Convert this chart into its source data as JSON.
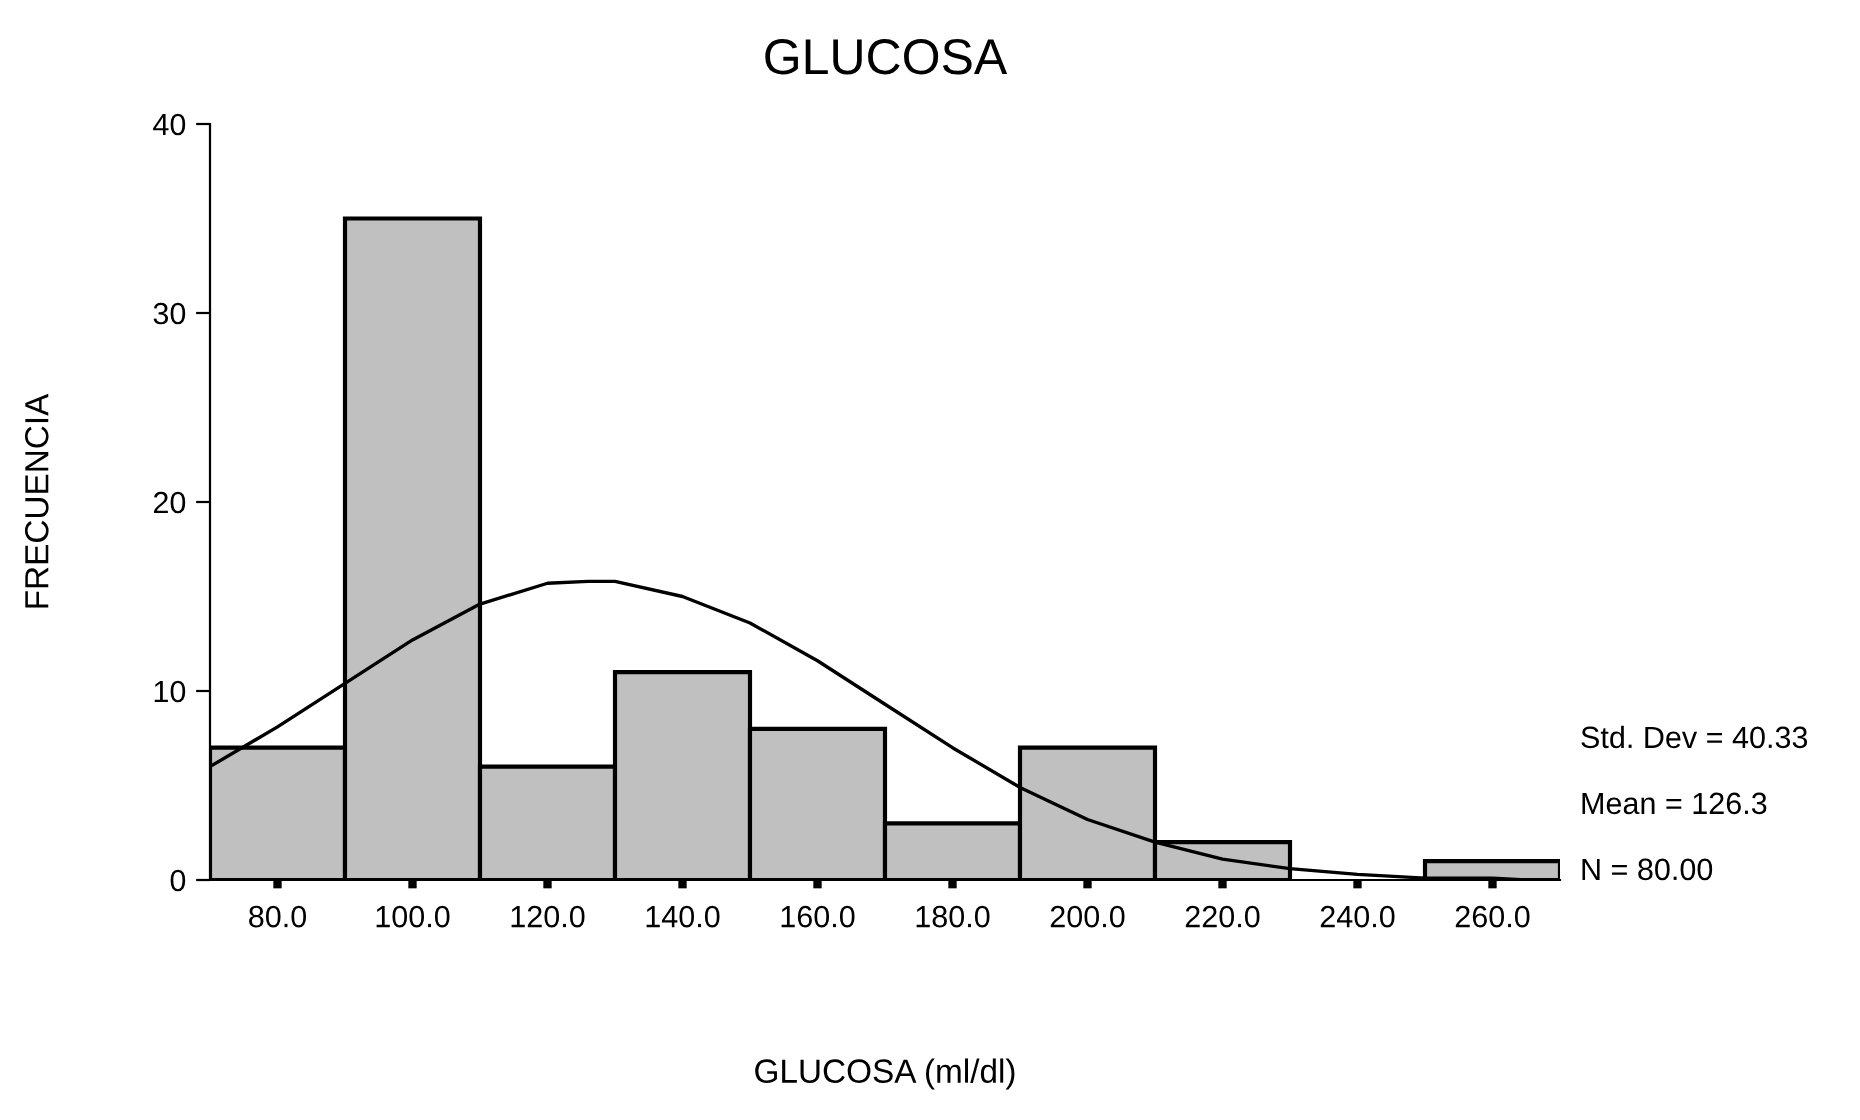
{
  "chart_data": {
    "type": "histogram",
    "title": "GLUCOSA",
    "xlabel": "GLUCOSA (ml/dl)",
    "ylabel": "FRECUENCIA",
    "bins": [
      70,
      90,
      110,
      130,
      150,
      170,
      190,
      210,
      230,
      250,
      270
    ],
    "values": [
      7,
      35,
      6,
      11,
      8,
      3,
      7,
      2,
      0,
      1
    ],
    "color": "#c0c0c0",
    "series": [
      {
        "type": "line",
        "color": "#000000",
        "x": [
          70,
          80,
          90,
          100,
          110,
          120,
          126,
          130,
          140,
          150,
          160,
          170,
          180,
          190,
          200,
          210,
          220,
          230,
          240,
          250,
          260,
          265
        ],
        "values": [
          6.0,
          8.1,
          10.4,
          12.7,
          14.6,
          15.7,
          15.8,
          15.8,
          15.0,
          13.6,
          11.6,
          9.3,
          7.0,
          4.9,
          3.2,
          2.0,
          1.1,
          0.6,
          0.3,
          0.1,
          0.1,
          0.0
        ]
      }
    ],
    "xlim": [
      70,
      270
    ],
    "xticks": [
      {
        "value": 80,
        "label": "80.0"
      },
      {
        "value": 100,
        "label": "100.0"
      },
      {
        "value": 120,
        "label": "120.0"
      },
      {
        "value": 140,
        "label": "140.0"
      },
      {
        "value": 160,
        "label": "160.0"
      },
      {
        "value": 180,
        "label": "180.0"
      },
      {
        "value": 200,
        "label": "200.0"
      },
      {
        "value": 220,
        "label": "220.0"
      },
      {
        "value": 240,
        "label": "240.0"
      },
      {
        "value": 260,
        "label": "260.0"
      }
    ],
    "ylim": [
      0,
      40
    ],
    "yticks": [
      0,
      10,
      20,
      30,
      40
    ],
    "annotations": [
      "Std. Dev = 40.33",
      "Mean = 126.3",
      "N = 80.00"
    ]
  }
}
